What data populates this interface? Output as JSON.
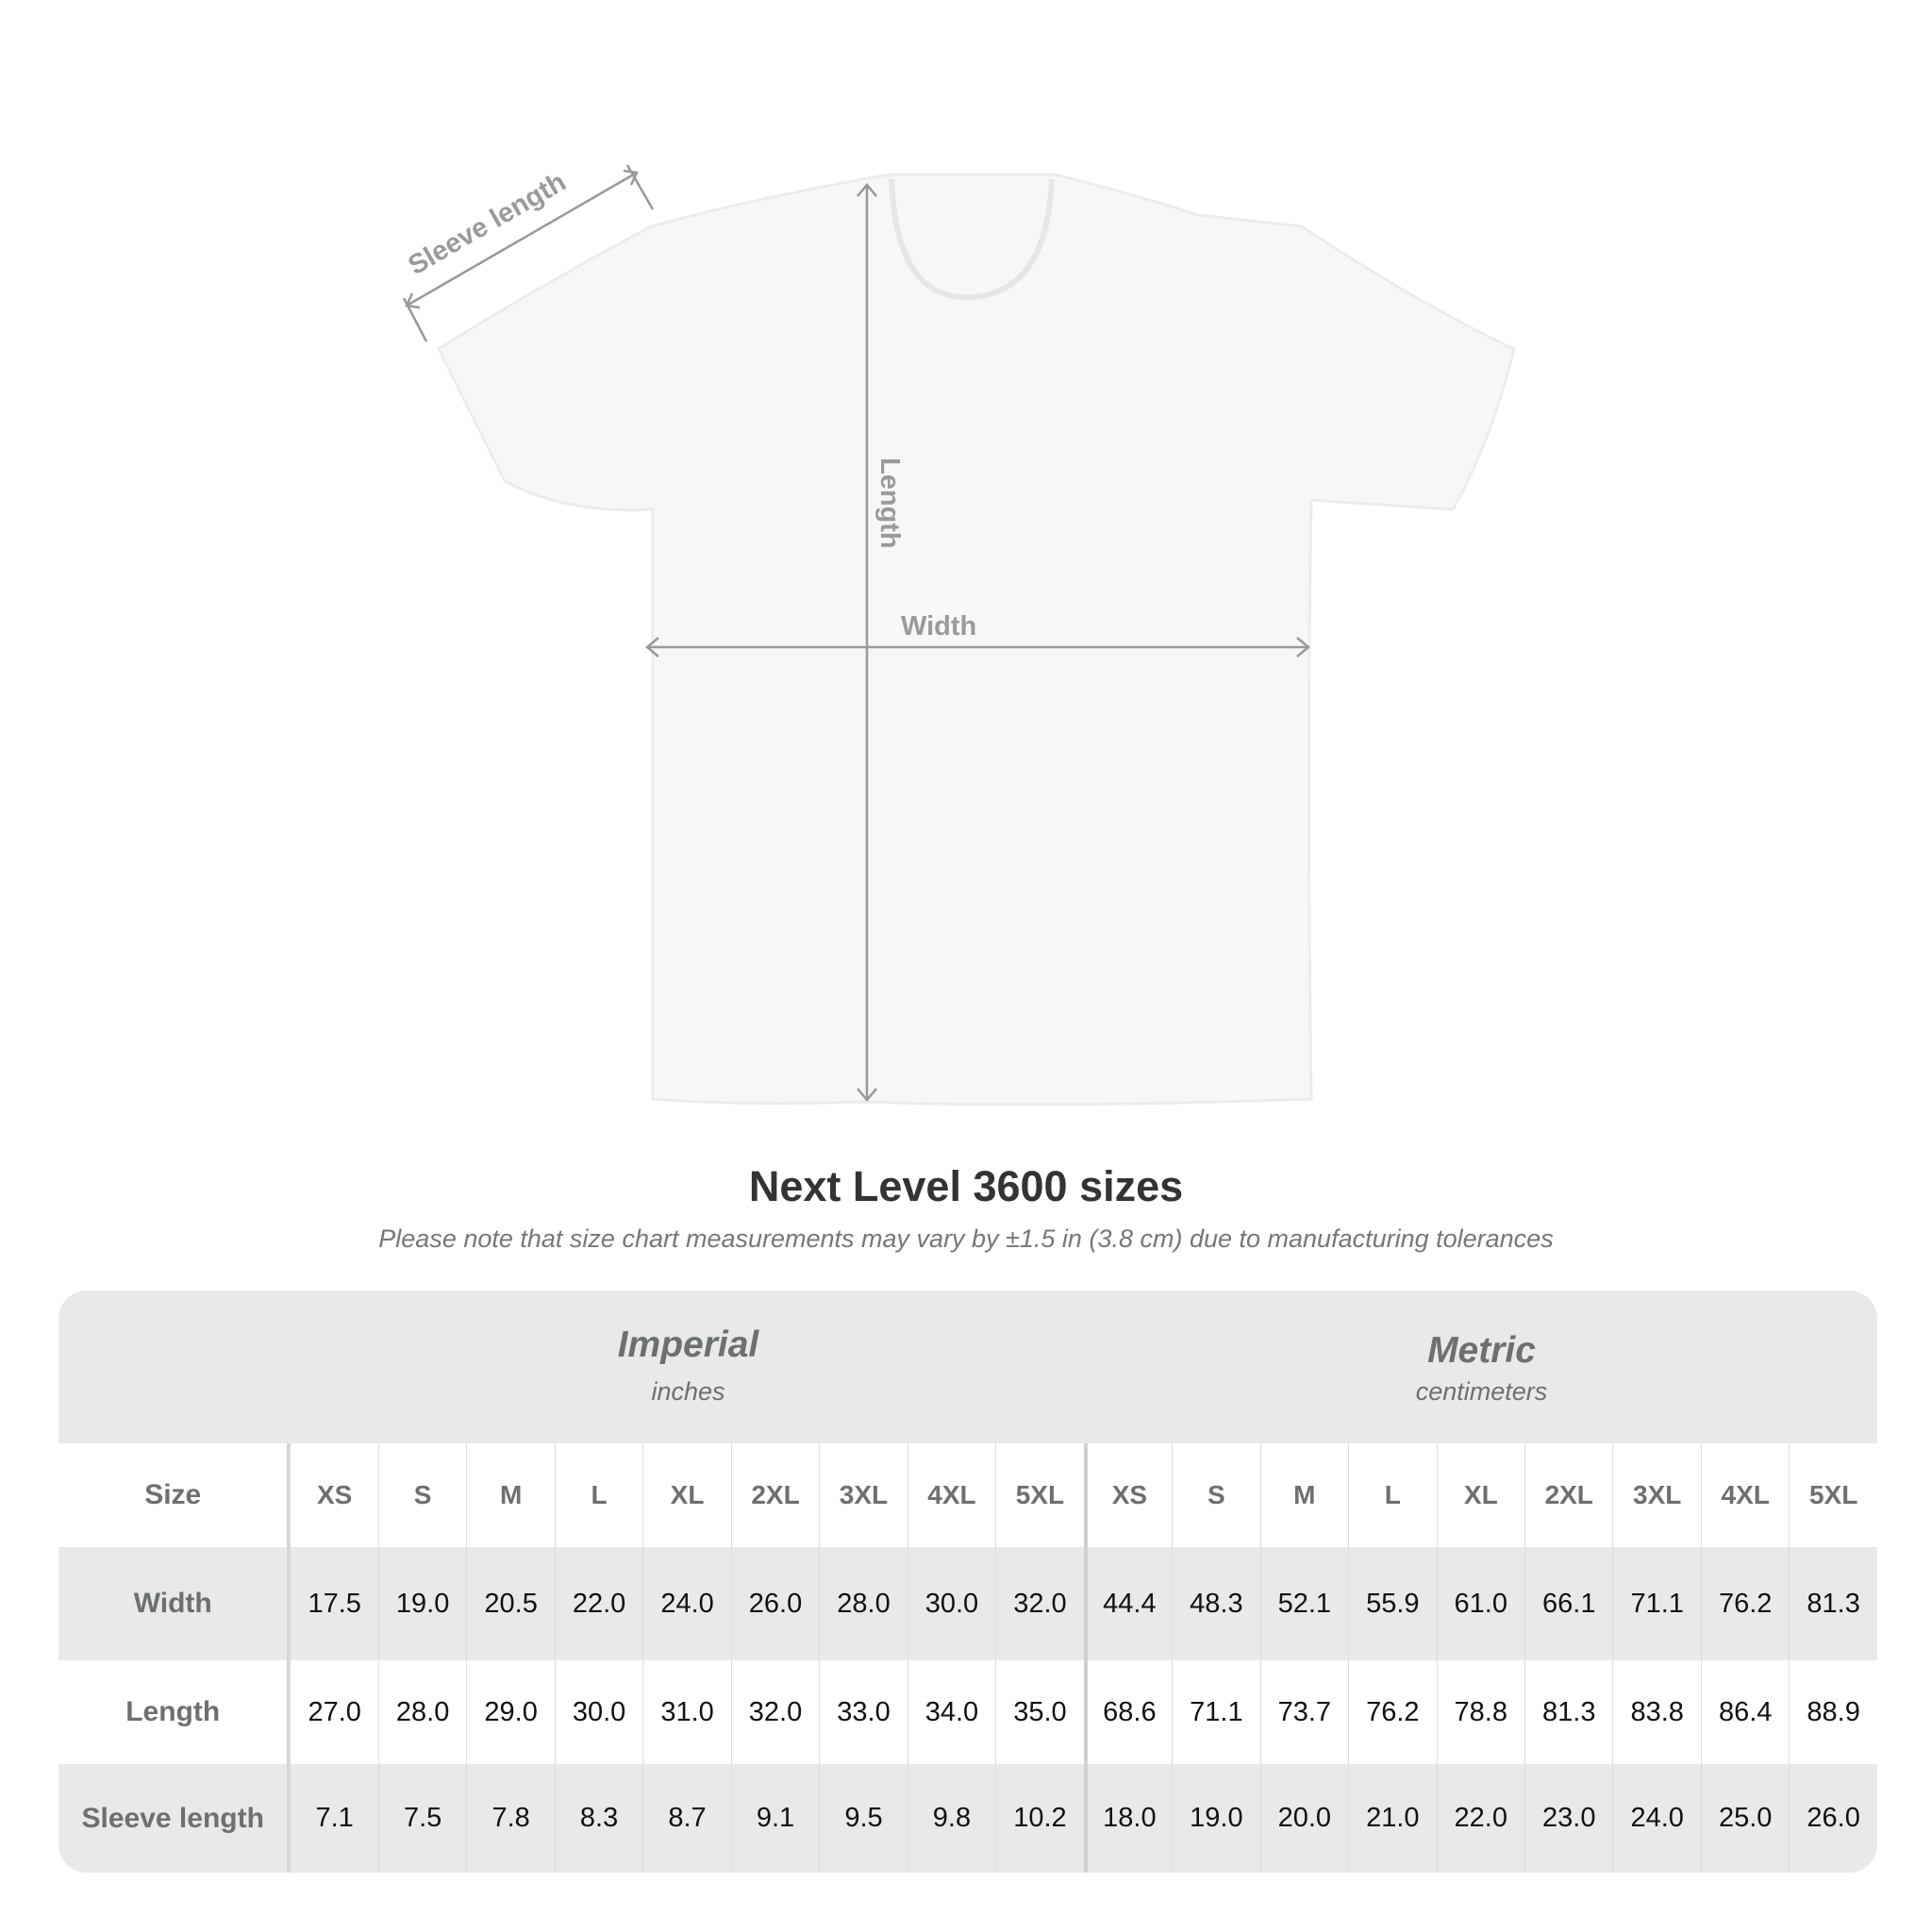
{
  "diagram": {
    "labels": {
      "sleeve": "Sleeve length",
      "length": "Length",
      "width": "Width"
    }
  },
  "title": "Next Level 3600 sizes",
  "note": "Please note that size chart measurements may vary by ±1.5 in (3.8 cm) due to manufacturing tolerances",
  "table": {
    "imperial": {
      "label": "Imperial",
      "unit": "inches"
    },
    "metric": {
      "label": "Metric",
      "unit": "centimeters"
    },
    "size_label": "Size",
    "sizes": [
      "XS",
      "S",
      "M",
      "L",
      "XL",
      "2XL",
      "3XL",
      "4XL",
      "5XL"
    ],
    "rows": [
      {
        "label": "Width",
        "imperial": [
          "17.5",
          "19.0",
          "20.5",
          "22.0",
          "24.0",
          "26.0",
          "28.0",
          "30.0",
          "32.0"
        ],
        "metric": [
          "44.4",
          "48.3",
          "52.1",
          "55.9",
          "61.0",
          "66.1",
          "71.1",
          "76.2",
          "81.3"
        ]
      },
      {
        "label": "Length",
        "imperial": [
          "27.0",
          "28.0",
          "29.0",
          "30.0",
          "31.0",
          "32.0",
          "33.0",
          "34.0",
          "35.0"
        ],
        "metric": [
          "68.6",
          "71.1",
          "73.7",
          "76.2",
          "78.8",
          "81.3",
          "83.8",
          "86.4",
          "88.9"
        ]
      },
      {
        "label": "Sleeve length",
        "imperial": [
          "7.1",
          "7.5",
          "7.8",
          "8.3",
          "8.7",
          "9.1",
          "9.5",
          "9.8",
          "10.2"
        ],
        "metric": [
          "18.0",
          "19.0",
          "20.0",
          "21.0",
          "22.0",
          "23.0",
          "24.0",
          "25.0",
          "26.0"
        ]
      }
    ]
  }
}
